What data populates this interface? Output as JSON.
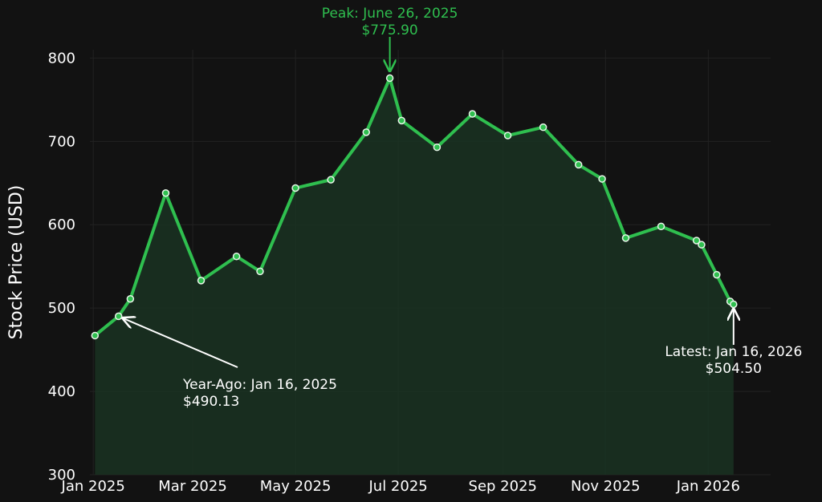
{
  "chart_data": {
    "type": "line",
    "ylabel": "Stock Price (USD)",
    "ylim": [
      300,
      810
    ],
    "yticks": [
      300,
      400,
      500,
      600,
      700,
      800
    ],
    "xlim": [
      "2024-12-30",
      "2026-02-07"
    ],
    "xticks": [
      {
        "date": "2025-01-01",
        "label": "Jan 2025"
      },
      {
        "date": "2025-03-01",
        "label": "Mar 2025"
      },
      {
        "date": "2025-05-01",
        "label": "May 2025"
      },
      {
        "date": "2025-07-01",
        "label": "Jul 2025"
      },
      {
        "date": "2025-09-01",
        "label": "Sep 2025"
      },
      {
        "date": "2025-11-01",
        "label": "Nov 2025"
      },
      {
        "date": "2026-01-01",
        "label": "Jan 2026"
      }
    ],
    "grid": true,
    "colors": {
      "line": "#2fbf4f",
      "fill": "#1a3322",
      "marker_edge": "#e8f5e9"
    },
    "series": [
      {
        "points": [
          {
            "x": "2025-01-02",
            "y": 467
          },
          {
            "x": "2025-01-16",
            "y": 490.13
          },
          {
            "x": "2025-01-23",
            "y": 511
          },
          {
            "x": "2025-02-13",
            "y": 638
          },
          {
            "x": "2025-03-06",
            "y": 533
          },
          {
            "x": "2025-03-27",
            "y": 562
          },
          {
            "x": "2025-04-10",
            "y": 544
          },
          {
            "x": "2025-05-01",
            "y": 644
          },
          {
            "x": "2025-05-22",
            "y": 654
          },
          {
            "x": "2025-06-12",
            "y": 711
          },
          {
            "x": "2025-06-26",
            "y": 775.9
          },
          {
            "x": "2025-07-03",
            "y": 725
          },
          {
            "x": "2025-07-24",
            "y": 693
          },
          {
            "x": "2025-08-14",
            "y": 733
          },
          {
            "x": "2025-09-04",
            "y": 707
          },
          {
            "x": "2025-09-25",
            "y": 717
          },
          {
            "x": "2025-10-16",
            "y": 672
          },
          {
            "x": "2025-10-30",
            "y": 655
          },
          {
            "x": "2025-11-13",
            "y": 584
          },
          {
            "x": "2025-12-04",
            "y": 598
          },
          {
            "x": "2025-12-25",
            "y": 581
          },
          {
            "x": "2025-12-28",
            "y": 576
          },
          {
            "x": "2026-01-06",
            "y": 540
          },
          {
            "x": "2026-01-14",
            "y": 508
          },
          {
            "x": "2026-01-16",
            "y": 504.5
          }
        ]
      }
    ],
    "annotations": [
      {
        "name": "peak",
        "lines": [
          "Peak: June 26, 2025",
          "$775.90"
        ],
        "x": "2025-06-26",
        "y": 775.9,
        "color": "#2fbf4f"
      },
      {
        "name": "year-ago",
        "lines": [
          "Year-Ago: Jan 16, 2025",
          "$490.13"
        ],
        "x": "2025-01-16",
        "y": 490.13,
        "color": "#ffffff"
      },
      {
        "name": "latest",
        "lines": [
          "Latest: Jan 16, 2026",
          "$504.50"
        ],
        "x": "2026-01-16",
        "y": 504.5,
        "color": "#ffffff"
      }
    ]
  }
}
